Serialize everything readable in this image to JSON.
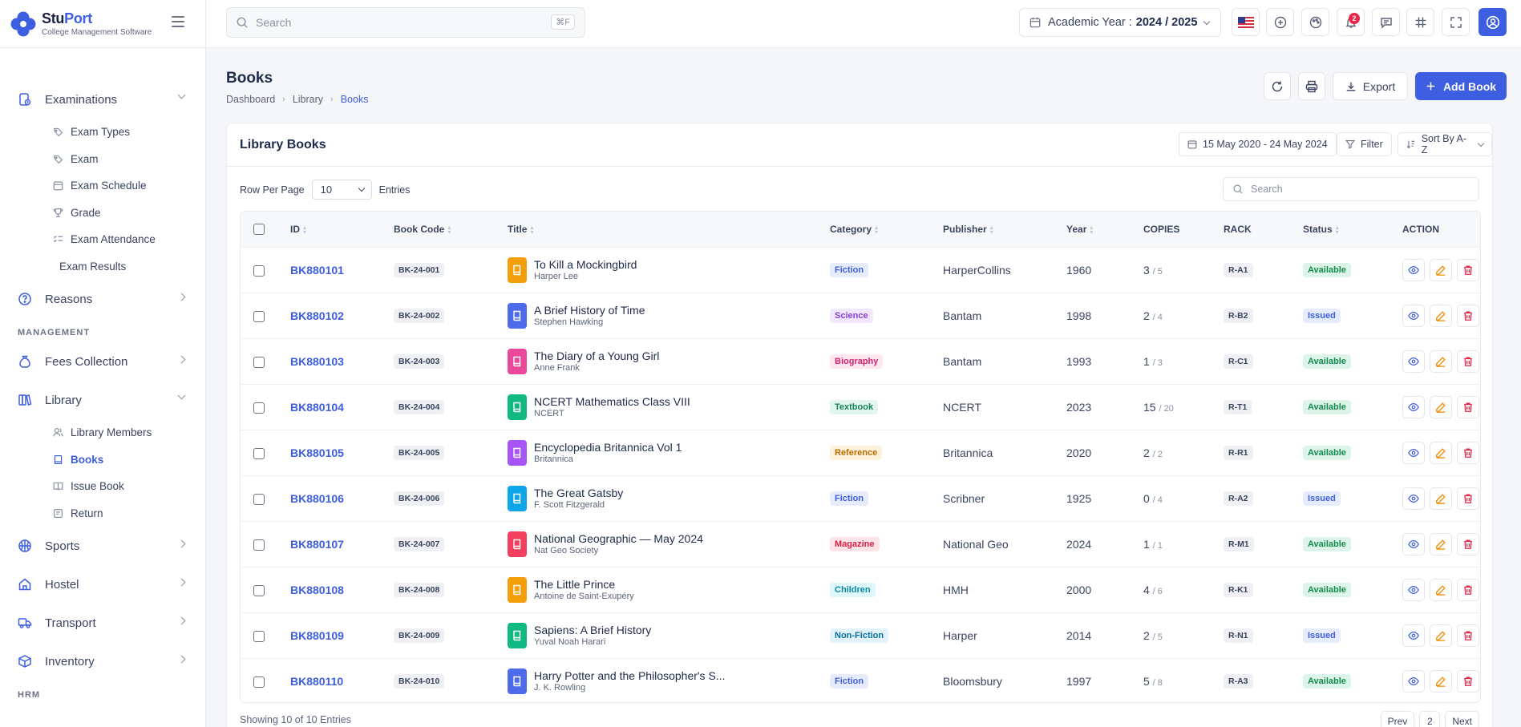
{
  "brand": {
    "name_part1": "Stu",
    "name_part2": "Port",
    "tagline": "College Management Software",
    "color": "#3d5ee1"
  },
  "sidebar": {
    "groups": [
      {
        "type": "item",
        "label": "Examinations",
        "icon": "exam-icon",
        "chevron": "down"
      },
      {
        "type": "sub",
        "label": "Exam Types",
        "icon": "tag-icon"
      },
      {
        "type": "sub",
        "label": "Exam",
        "icon": "tag-icon"
      },
      {
        "type": "sub",
        "label": "Exam Schedule",
        "icon": "calendar-icon"
      },
      {
        "type": "sub",
        "label": "Grade",
        "icon": "trophy-icon"
      },
      {
        "type": "sub",
        "label": "Exam Attendance",
        "icon": "checklist-icon"
      },
      {
        "type": "sub-noicon",
        "label": "Exam Results"
      },
      {
        "type": "item",
        "label": "Reasons",
        "icon": "question-icon",
        "chevron": "right"
      },
      {
        "type": "section",
        "label": "MANAGEMENT"
      },
      {
        "type": "item",
        "label": "Fees Collection",
        "icon": "money-bag-icon",
        "chevron": "right"
      },
      {
        "type": "item",
        "label": "Library",
        "icon": "library-icon",
        "chevron": "down"
      },
      {
        "type": "sub",
        "label": "Library Members",
        "icon": "users-icon"
      },
      {
        "type": "sub",
        "label": "Books",
        "icon": "book-icon",
        "active": true
      },
      {
        "type": "sub",
        "label": "Issue Book",
        "icon": "open-book-icon"
      },
      {
        "type": "sub",
        "label": "Return",
        "icon": "return-icon"
      },
      {
        "type": "item",
        "label": "Sports",
        "icon": "ball-icon",
        "chevron": "right"
      },
      {
        "type": "item",
        "label": "Hostel",
        "icon": "home-icon",
        "chevron": "right"
      },
      {
        "type": "item",
        "label": "Transport",
        "icon": "truck-icon",
        "chevron": "right"
      },
      {
        "type": "item",
        "label": "Inventory",
        "icon": "box-icon",
        "chevron": "right"
      },
      {
        "type": "section",
        "label": "HRM"
      }
    ]
  },
  "topbar": {
    "search_placeholder": "Search",
    "search_shortcut": "⌘F",
    "academic_year_label": "Academic Year :",
    "academic_year_value": "2024 / 2025",
    "notification_count": "2"
  },
  "page": {
    "title": "Books",
    "breadcrumb": [
      "Dashboard",
      "Library",
      "Books"
    ],
    "export_label": "Export",
    "add_label": "Add Book"
  },
  "card": {
    "title": "Library Books",
    "date_range": "15 May 2020 - 24 May 2024",
    "filter_label": "Filter",
    "sort_label": "Sort By A-Z",
    "rows_per_page_label": "Row Per Page",
    "rows_per_page_value": "10",
    "entries_label": "Entries",
    "search_placeholder": "Search"
  },
  "table": {
    "columns": [
      "ID",
      "Book Code",
      "Title",
      "Category",
      "Publisher",
      "Year",
      "COPIES",
      "RACK",
      "Status",
      "ACTION"
    ],
    "rows": [
      {
        "id": "BK880101",
        "code": "BK-24-001",
        "title": "To Kill a Mockingbird",
        "author": "Harper Lee",
        "icon_color": "#f59e0b",
        "category": "Fiction",
        "publisher": "HarperCollins",
        "year": "1960",
        "copies": "3",
        "total": "/ 5",
        "rack": "R-A1",
        "status": "Available"
      },
      {
        "id": "BK880102",
        "code": "BK-24-002",
        "title": "A Brief History of Time",
        "author": "Stephen Hawking",
        "icon_color": "#4f6bed",
        "category": "Science",
        "publisher": "Bantam",
        "year": "1998",
        "copies": "2",
        "total": "/ 4",
        "rack": "R-B2",
        "status": "Issued"
      },
      {
        "id": "BK880103",
        "code": "BK-24-003",
        "title": "The Diary of a Young Girl",
        "author": "Anne Frank",
        "icon_color": "#ec4899",
        "category": "Biography",
        "publisher": "Bantam",
        "year": "1993",
        "copies": "1",
        "total": "/ 3",
        "rack": "R-C1",
        "status": "Available"
      },
      {
        "id": "BK880104",
        "code": "BK-24-004",
        "title": "NCERT Mathematics Class VIII",
        "author": "NCERT",
        "icon_color": "#10b981",
        "category": "Textbook",
        "publisher": "NCERT",
        "year": "2023",
        "copies": "15",
        "total": "/ 20",
        "rack": "R-T1",
        "status": "Available"
      },
      {
        "id": "BK880105",
        "code": "BK-24-005",
        "title": "Encyclopedia Britannica Vol 1",
        "author": "Britannica",
        "icon_color": "#a855f7",
        "category": "Reference",
        "publisher": "Britannica",
        "year": "2020",
        "copies": "2",
        "total": "/ 2",
        "rack": "R-R1",
        "status": "Available"
      },
      {
        "id": "BK880106",
        "code": "BK-24-006",
        "title": "The Great Gatsby",
        "author": "F. Scott Fitzgerald",
        "icon_color": "#0ea5e9",
        "category": "Fiction",
        "publisher": "Scribner",
        "year": "1925",
        "copies": "0",
        "total": "/ 4",
        "rack": "R-A2",
        "status": "Issued"
      },
      {
        "id": "BK880107",
        "code": "BK-24-007",
        "title": "National Geographic — May 2024",
        "author": "Nat Geo Society",
        "icon_color": "#f43f5e",
        "category": "Magazine",
        "publisher": "National Geo",
        "year": "2024",
        "copies": "1",
        "total": "/ 1",
        "rack": "R-M1",
        "status": "Available"
      },
      {
        "id": "BK880108",
        "code": "BK-24-008",
        "title": "The Little Prince",
        "author": "Antoine de Saint-Exupéry",
        "icon_color": "#f59e0b",
        "category": "Children",
        "publisher": "HMH",
        "year": "2000",
        "copies": "4",
        "total": "/ 6",
        "rack": "R-K1",
        "status": "Available"
      },
      {
        "id": "BK880109",
        "code": "BK-24-009",
        "title": "Sapiens: A Brief History",
        "author": "Yuval Noah Harari",
        "icon_color": "#10b981",
        "category": "Non-Fiction",
        "publisher": "Harper",
        "year": "2014",
        "copies": "2",
        "total": "/ 5",
        "rack": "R-N1",
        "status": "Issued"
      },
      {
        "id": "BK880110",
        "code": "BK-24-010",
        "title": "Harry Potter and the Philosopher's S...",
        "author": "J. K. Rowling",
        "icon_color": "#4f6bed",
        "category": "Fiction",
        "publisher": "Bloomsbury",
        "year": "1997",
        "copies": "5",
        "total": "/ 8",
        "rack": "R-A3",
        "status": "Available"
      }
    ]
  },
  "category_colors": {
    "Fiction": [
      "#e7ecfd",
      "#3d5ee1"
    ],
    "Science": [
      "#f1e8fd",
      "#8b3fdc"
    ],
    "Biography": [
      "#fde7f1",
      "#d6246e"
    ],
    "Textbook": [
      "#e2f6ee",
      "#13855a"
    ],
    "Reference": [
      "#fdf1dc",
      "#b86e00"
    ],
    "Magazine": [
      "#fde4e8",
      "#d61f45"
    ],
    "Children": [
      "#dff6fa",
      "#0a8aa3"
    ],
    "Non-Fiction": [
      "#e2f3fb",
      "#0b6e9e"
    ]
  },
  "status_colors": {
    "Available": [
      "#dcf5e8",
      "#138a4f"
    ],
    "Issued": [
      "#e7ecfd",
      "#3d5ee1"
    ]
  },
  "footer": {
    "showing": "Showing 10 of 10 Entries",
    "prev": "Prev",
    "page": "2",
    "next": "Next"
  }
}
